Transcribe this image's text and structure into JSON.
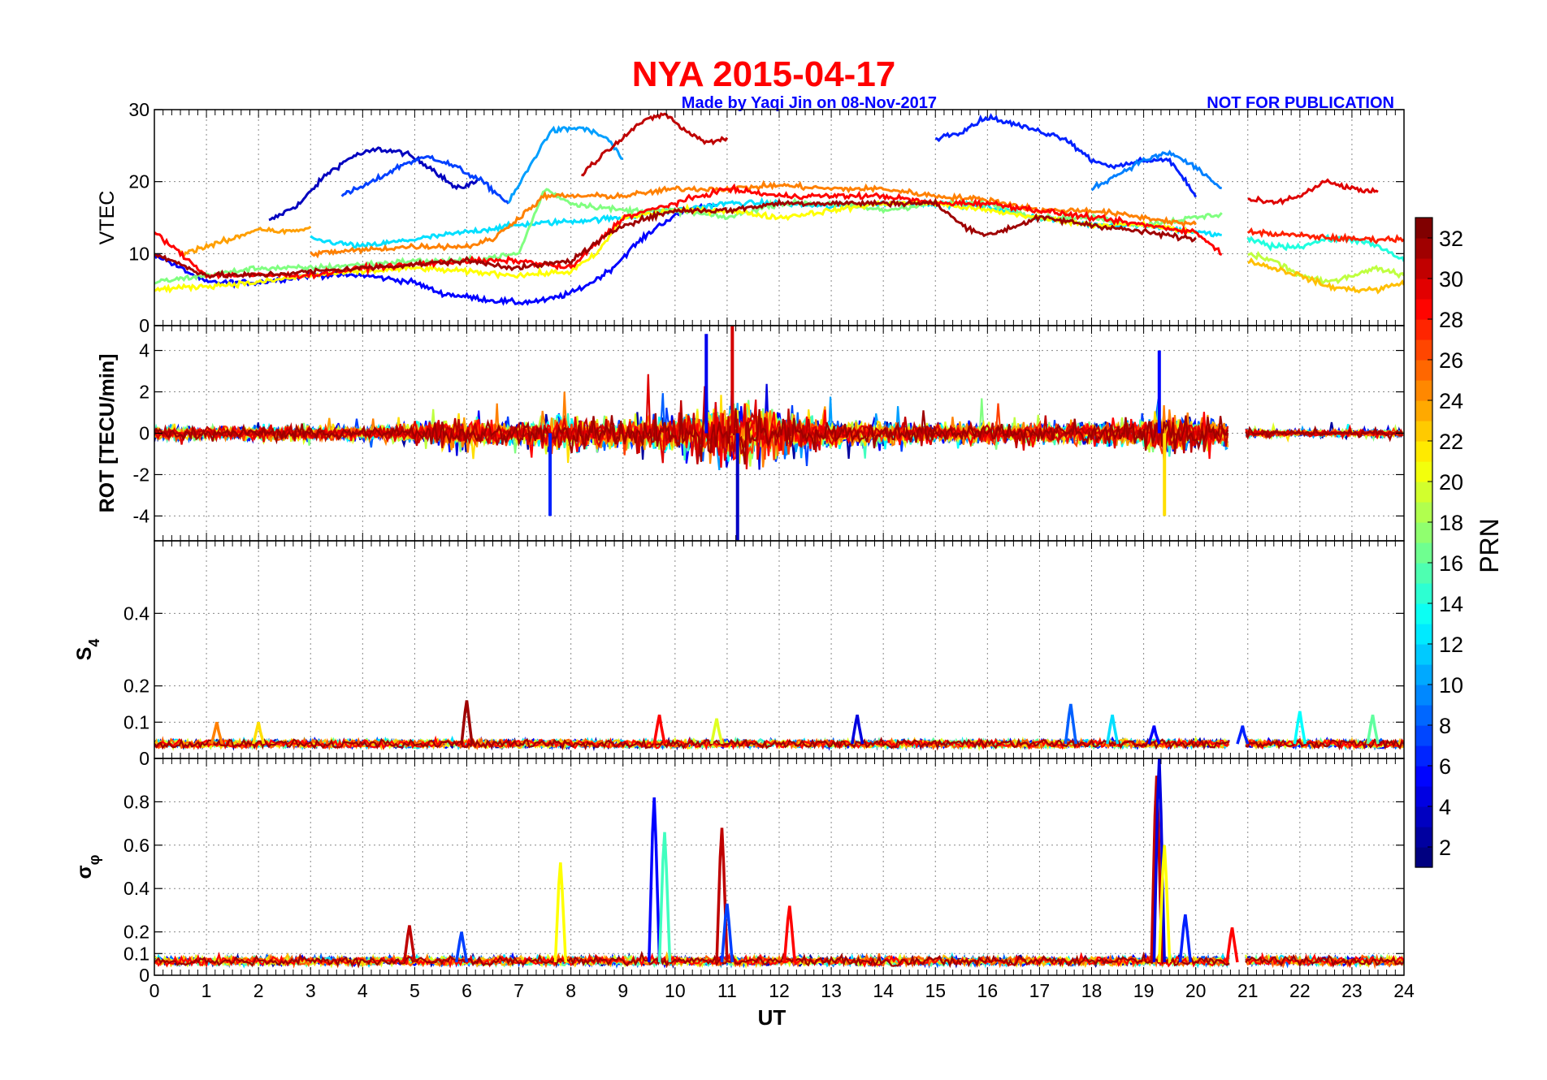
{
  "title": "NYA   2015-04-17",
  "credit_left": "Made by Yaqi Jin on 08-Nov-2017",
  "credit_right": "NOT FOR PUBLICATION",
  "x_axis": {
    "label": "UT",
    "range": [
      0,
      24
    ],
    "ticks": [
      "0",
      "1",
      "2",
      "3",
      "4",
      "5",
      "6",
      "7",
      "8",
      "9",
      "10",
      "11",
      "12",
      "13",
      "14",
      "15",
      "16",
      "17",
      "18",
      "19",
      "20",
      "21",
      "22",
      "23",
      "24"
    ]
  },
  "panels": [
    {
      "id": "vtec",
      "ylabel": "VTEC",
      "ylim": [
        0,
        30
      ],
      "yticks": [
        "0",
        "10",
        "20",
        "30"
      ],
      "ytick_values": [
        0,
        10,
        20,
        30
      ]
    },
    {
      "id": "rot",
      "ylabel": "ROT [TECU/min]",
      "ylim": [
        -5.2,
        5.2
      ],
      "yticks": [
        "-4",
        "-2",
        "0",
        "2",
        "4"
      ],
      "ytick_values": [
        -4,
        -2,
        0,
        2,
        4
      ]
    },
    {
      "id": "s4",
      "ylabel_main": "S",
      "ylabel_sub": "4",
      "ylim": [
        0,
        0.6
      ],
      "yticks": [
        "0",
        "0.1",
        "0.2",
        "0.4"
      ],
      "ytick_values": [
        0,
        0.1,
        0.2,
        0.4
      ]
    },
    {
      "id": "sigphi",
      "ylabel_main": "σ",
      "ylabel_sub": "φ",
      "ylim": [
        0,
        1.0
      ],
      "yticks": [
        "0",
        "0.1",
        "0.2",
        "0.4",
        "0.6",
        "0.8"
      ],
      "ytick_values": [
        0,
        0.1,
        0.2,
        0.4,
        0.6,
        0.8
      ]
    }
  ],
  "colorbar": {
    "label": "PRN",
    "range": [
      1,
      33
    ],
    "ticks": [
      "2",
      "4",
      "6",
      "8",
      "10",
      "12",
      "14",
      "16",
      "18",
      "20",
      "22",
      "24",
      "26",
      "28",
      "30",
      "32"
    ],
    "tick_values": [
      2,
      4,
      6,
      8,
      10,
      12,
      14,
      16,
      18,
      20,
      22,
      24,
      26,
      28,
      30,
      32
    ]
  },
  "chart_data": [
    {
      "type": "line",
      "ylabel": "VTEC",
      "xlabel": "UT",
      "xlim": [
        0,
        24
      ],
      "ylim": [
        0,
        30
      ],
      "series": [
        {
          "prn": 3,
          "x": [
            2.2,
            2.8,
            3.3,
            3.8,
            4.3,
            4.8,
            5.3,
            5.8,
            6.2
          ],
          "y": [
            14.5,
            17,
            21,
            23.5,
            24.5,
            24,
            22,
            19,
            20
          ]
        },
        {
          "prn": 5,
          "x": [
            0,
            1,
            2,
            3,
            4,
            5,
            5.5,
            6,
            6.5,
            7,
            7.5,
            8,
            8.4,
            8.8,
            9.2,
            9.7,
            10.2,
            10.8
          ],
          "y": [
            10,
            6,
            6,
            7,
            7,
            6,
            4.5,
            4,
            3.5,
            3.2,
            3.5,
            4.5,
            6,
            8,
            11,
            14,
            16,
            17
          ]
        },
        {
          "prn": 7,
          "x": [
            3.6,
            4.2,
            4.8,
            5.3,
            5.8,
            6.3,
            6.8
          ],
          "y": [
            18,
            20,
            22.5,
            23.5,
            22,
            20,
            17
          ]
        },
        {
          "prn": 10,
          "x": [
            6.8,
            7.2,
            7.6,
            8.2,
            8.7,
            9.0
          ],
          "y": [
            17,
            22,
            27,
            27.5,
            26,
            23
          ]
        },
        {
          "prn": 12,
          "x": [
            3,
            4,
            5,
            6,
            7,
            8,
            9,
            10,
            11,
            12,
            13,
            14,
            15,
            16,
            17,
            18,
            19,
            20,
            20.5
          ],
          "y": [
            12,
            11,
            12,
            13,
            14,
            14.5,
            15,
            16,
            17,
            17,
            16.5,
            17,
            17,
            16.5,
            15,
            14,
            14,
            13,
            12.5
          ]
        },
        {
          "prn": 17,
          "x": [
            0,
            1,
            2,
            3,
            4,
            5,
            6,
            7,
            7.5,
            8,
            9,
            10,
            11,
            12,
            13,
            14,
            15,
            16,
            17,
            18,
            19,
            20,
            20.5
          ],
          "y": [
            6,
            7,
            8,
            8,
            8.5,
            9,
            9,
            10,
            19,
            17,
            16,
            16,
            15,
            17,
            17,
            16,
            17,
            17,
            15,
            15,
            14,
            15,
            15.5
          ]
        },
        {
          "prn": 21,
          "x": [
            0,
            1,
            2,
            3,
            4,
            5,
            6,
            7,
            8,
            8.5,
            9,
            10,
            11,
            12,
            13,
            14,
            15,
            16,
            17,
            18,
            19,
            20
          ],
          "y": [
            5,
            5.5,
            6,
            7,
            7.5,
            8,
            7.5,
            7,
            7.5,
            10,
            15,
            16,
            16,
            15,
            16,
            17,
            17,
            16,
            15,
            14,
            14,
            13
          ]
        },
        {
          "prn": 24,
          "x": [
            0.5,
            1,
            1.5,
            2,
            2.5,
            3
          ],
          "y": [
            10,
            11,
            12,
            13.5,
            13,
            13.5
          ]
        },
        {
          "prn": 25,
          "x": [
            3,
            4,
            5,
            6,
            6.5,
            7,
            7.5,
            8,
            9,
            10,
            11,
            12,
            13,
            14,
            15,
            16,
            17,
            18,
            19,
            20
          ],
          "y": [
            10,
            10.5,
            11,
            11,
            12,
            15,
            18,
            18,
            18,
            19,
            19,
            19.5,
            19,
            19,
            18,
            17.5,
            16,
            16,
            15,
            14
          ]
        },
        {
          "prn": 29,
          "x": [
            0,
            0.5,
            1,
            2,
            3,
            4,
            5,
            6,
            7,
            8,
            9,
            10,
            11,
            12,
            13,
            14,
            15,
            16,
            17,
            18,
            19,
            20,
            20.5
          ],
          "y": [
            13,
            10,
            7,
            7,
            7,
            8,
            8.5,
            9,
            9,
            8,
            15,
            17,
            19,
            18,
            18,
            18,
            17,
            17,
            16,
            15,
            14,
            13,
            10
          ]
        },
        {
          "prn": 31,
          "x": [
            8.2,
            8.8,
            9.3,
            9.8,
            10.2,
            10.6,
            11
          ],
          "y": [
            21,
            25,
            28,
            29.5,
            27,
            25.5,
            26
          ]
        },
        {
          "prn": 32,
          "x": [
            0,
            1,
            2,
            3,
            4,
            5,
            6,
            7,
            8,
            9,
            10,
            11,
            12,
            13,
            14,
            15,
            15.5,
            16,
            17,
            18,
            19,
            20
          ],
          "y": [
            10,
            7,
            7,
            7.5,
            8,
            8.5,
            9,
            8,
            9,
            14,
            16,
            16,
            17,
            17,
            17,
            17,
            14,
            12.5,
            15,
            14,
            13,
            12
          ]
        },
        {
          "prn": 6,
          "x": [
            15,
            15.5,
            16,
            16.5,
            17,
            17.5,
            18,
            18.5,
            19,
            19.5,
            20
          ],
          "y": [
            26,
            27,
            29,
            28,
            27,
            26,
            23,
            22,
            23,
            23,
            18
          ]
        },
        {
          "prn": 9,
          "x": [
            18,
            18.5,
            19,
            19.5,
            20,
            20.5
          ],
          "y": [
            19,
            21,
            23,
            24,
            22,
            19
          ]
        },
        {
          "prn": 30,
          "x": [
            21,
            21.5,
            22,
            22.5,
            23,
            23.5
          ],
          "y": [
            17.5,
            17,
            18,
            20,
            19,
            18.5
          ]
        },
        {
          "prn": 14,
          "x": [
            21,
            21.5,
            22,
            22.5,
            23,
            23.5,
            24
          ],
          "y": [
            12,
            11,
            11,
            12,
            12,
            11,
            9
          ]
        },
        {
          "prn": 19,
          "x": [
            21,
            21.5,
            22,
            22.5,
            23,
            23.5,
            24
          ],
          "y": [
            10,
            9,
            7,
            6,
            7,
            8,
            7
          ]
        },
        {
          "prn": 23,
          "x": [
            21,
            21.5,
            22,
            22.5,
            23,
            23.5,
            24
          ],
          "y": [
            9,
            8,
            7,
            5.5,
            5,
            5,
            6
          ]
        },
        {
          "prn": 28,
          "x": [
            21,
            22,
            23,
            23.5,
            24
          ],
          "y": [
            13,
            12.5,
            12,
            12,
            12
          ]
        }
      ]
    },
    {
      "type": "line",
      "ylabel": "ROT [TECU/min]",
      "xlabel": "UT",
      "xlim": [
        0,
        24
      ],
      "ylim": [
        -5.2,
        5.2
      ],
      "envelope": {
        "x": [
          0,
          1,
          2,
          3,
          4,
          5,
          6,
          7,
          8,
          9,
          10,
          10.5,
          11,
          11.5,
          12,
          13,
          14,
          15,
          16,
          17,
          18,
          19,
          19.5,
          20,
          20.7,
          21,
          22,
          23,
          24
        ],
        "amplitude": [
          1.2,
          0.9,
          1.2,
          1.2,
          1.0,
          1.8,
          2.4,
          1.8,
          3.0,
          2.2,
          3.2,
          4.5,
          5.2,
          4.8,
          3.5,
          2.5,
          2.0,
          1.5,
          1.6,
          1.8,
          1.6,
          2.5,
          4.0,
          2.5,
          2.5,
          0.6,
          0.5,
          0.5,
          0.6
        ]
      },
      "extremes": [
        {
          "x": 10.6,
          "y": 4.8
        },
        {
          "x": 11.1,
          "y": 5.2
        },
        {
          "x": 11.2,
          "y": -5.2
        },
        {
          "x": 7.6,
          "y": -4
        },
        {
          "x": 19.3,
          "y": 4
        },
        {
          "x": 19.4,
          "y": -4
        }
      ]
    },
    {
      "type": "line",
      "ylabel": "S4",
      "xlabel": "UT",
      "xlim": [
        0,
        24
      ],
      "ylim": [
        0,
        0.6
      ],
      "baseline": 0.04,
      "peaks": [
        {
          "x": 1.2,
          "y": 0.1,
          "prn": 25
        },
        {
          "x": 2.0,
          "y": 0.1,
          "prn": 22
        },
        {
          "x": 6.0,
          "y": 0.16,
          "prn": 32
        },
        {
          "x": 9.7,
          "y": 0.12,
          "prn": 29
        },
        {
          "x": 10.8,
          "y": 0.11,
          "prn": 20
        },
        {
          "x": 13.5,
          "y": 0.12,
          "prn": 4
        },
        {
          "x": 17.6,
          "y": 0.15,
          "prn": 8
        },
        {
          "x": 18.4,
          "y": 0.12,
          "prn": 12
        },
        {
          "x": 19.2,
          "y": 0.09,
          "prn": 5
        },
        {
          "x": 20.9,
          "y": 0.09,
          "prn": 6
        },
        {
          "x": 22.0,
          "y": 0.13,
          "prn": 13
        },
        {
          "x": 23.4,
          "y": 0.12,
          "prn": 16
        }
      ]
    },
    {
      "type": "line",
      "ylabel": "σφ",
      "xlabel": "UT",
      "xlim": [
        0,
        24
      ],
      "ylim": [
        0,
        1.0
      ],
      "baseline": 0.06,
      "peaks": [
        {
          "x": 4.9,
          "y": 0.23,
          "prn": 31
        },
        {
          "x": 5.9,
          "y": 0.2,
          "prn": 7
        },
        {
          "x": 7.8,
          "y": 0.52,
          "prn": 21
        },
        {
          "x": 9.6,
          "y": 0.82,
          "prn": 5
        },
        {
          "x": 9.8,
          "y": 0.66,
          "prn": 15
        },
        {
          "x": 10.9,
          "y": 0.68,
          "prn": 31
        },
        {
          "x": 11.0,
          "y": 0.33,
          "prn": 7
        },
        {
          "x": 12.2,
          "y": 0.32,
          "prn": 29
        },
        {
          "x": 19.25,
          "y": 0.92,
          "prn": 31
        },
        {
          "x": 19.3,
          "y": 1.0,
          "prn": 4
        },
        {
          "x": 19.4,
          "y": 0.6,
          "prn": 21
        },
        {
          "x": 19.8,
          "y": 0.28,
          "prn": 6
        },
        {
          "x": 20.7,
          "y": 0.22,
          "prn": 29
        }
      ]
    }
  ]
}
